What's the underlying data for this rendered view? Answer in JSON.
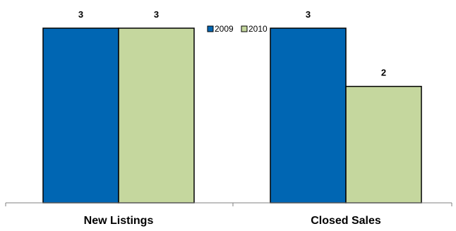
{
  "chart_data": {
    "type": "bar",
    "categories": [
      "New Listings",
      "Closed Sales"
    ],
    "series": [
      {
        "name": "2009",
        "values": [
          3,
          3
        ]
      },
      {
        "name": "2010",
        "values": [
          3,
          2
        ]
      }
    ],
    "title": "",
    "xlabel": "",
    "ylabel": "",
    "ylim": [
      0,
      3
    ],
    "grid": false,
    "legend_position": "top-center",
    "colors": {
      "2009": "#0066b3",
      "2010": "#c5d79e",
      "bar_outline": "#000000",
      "axis": "#808080"
    }
  }
}
